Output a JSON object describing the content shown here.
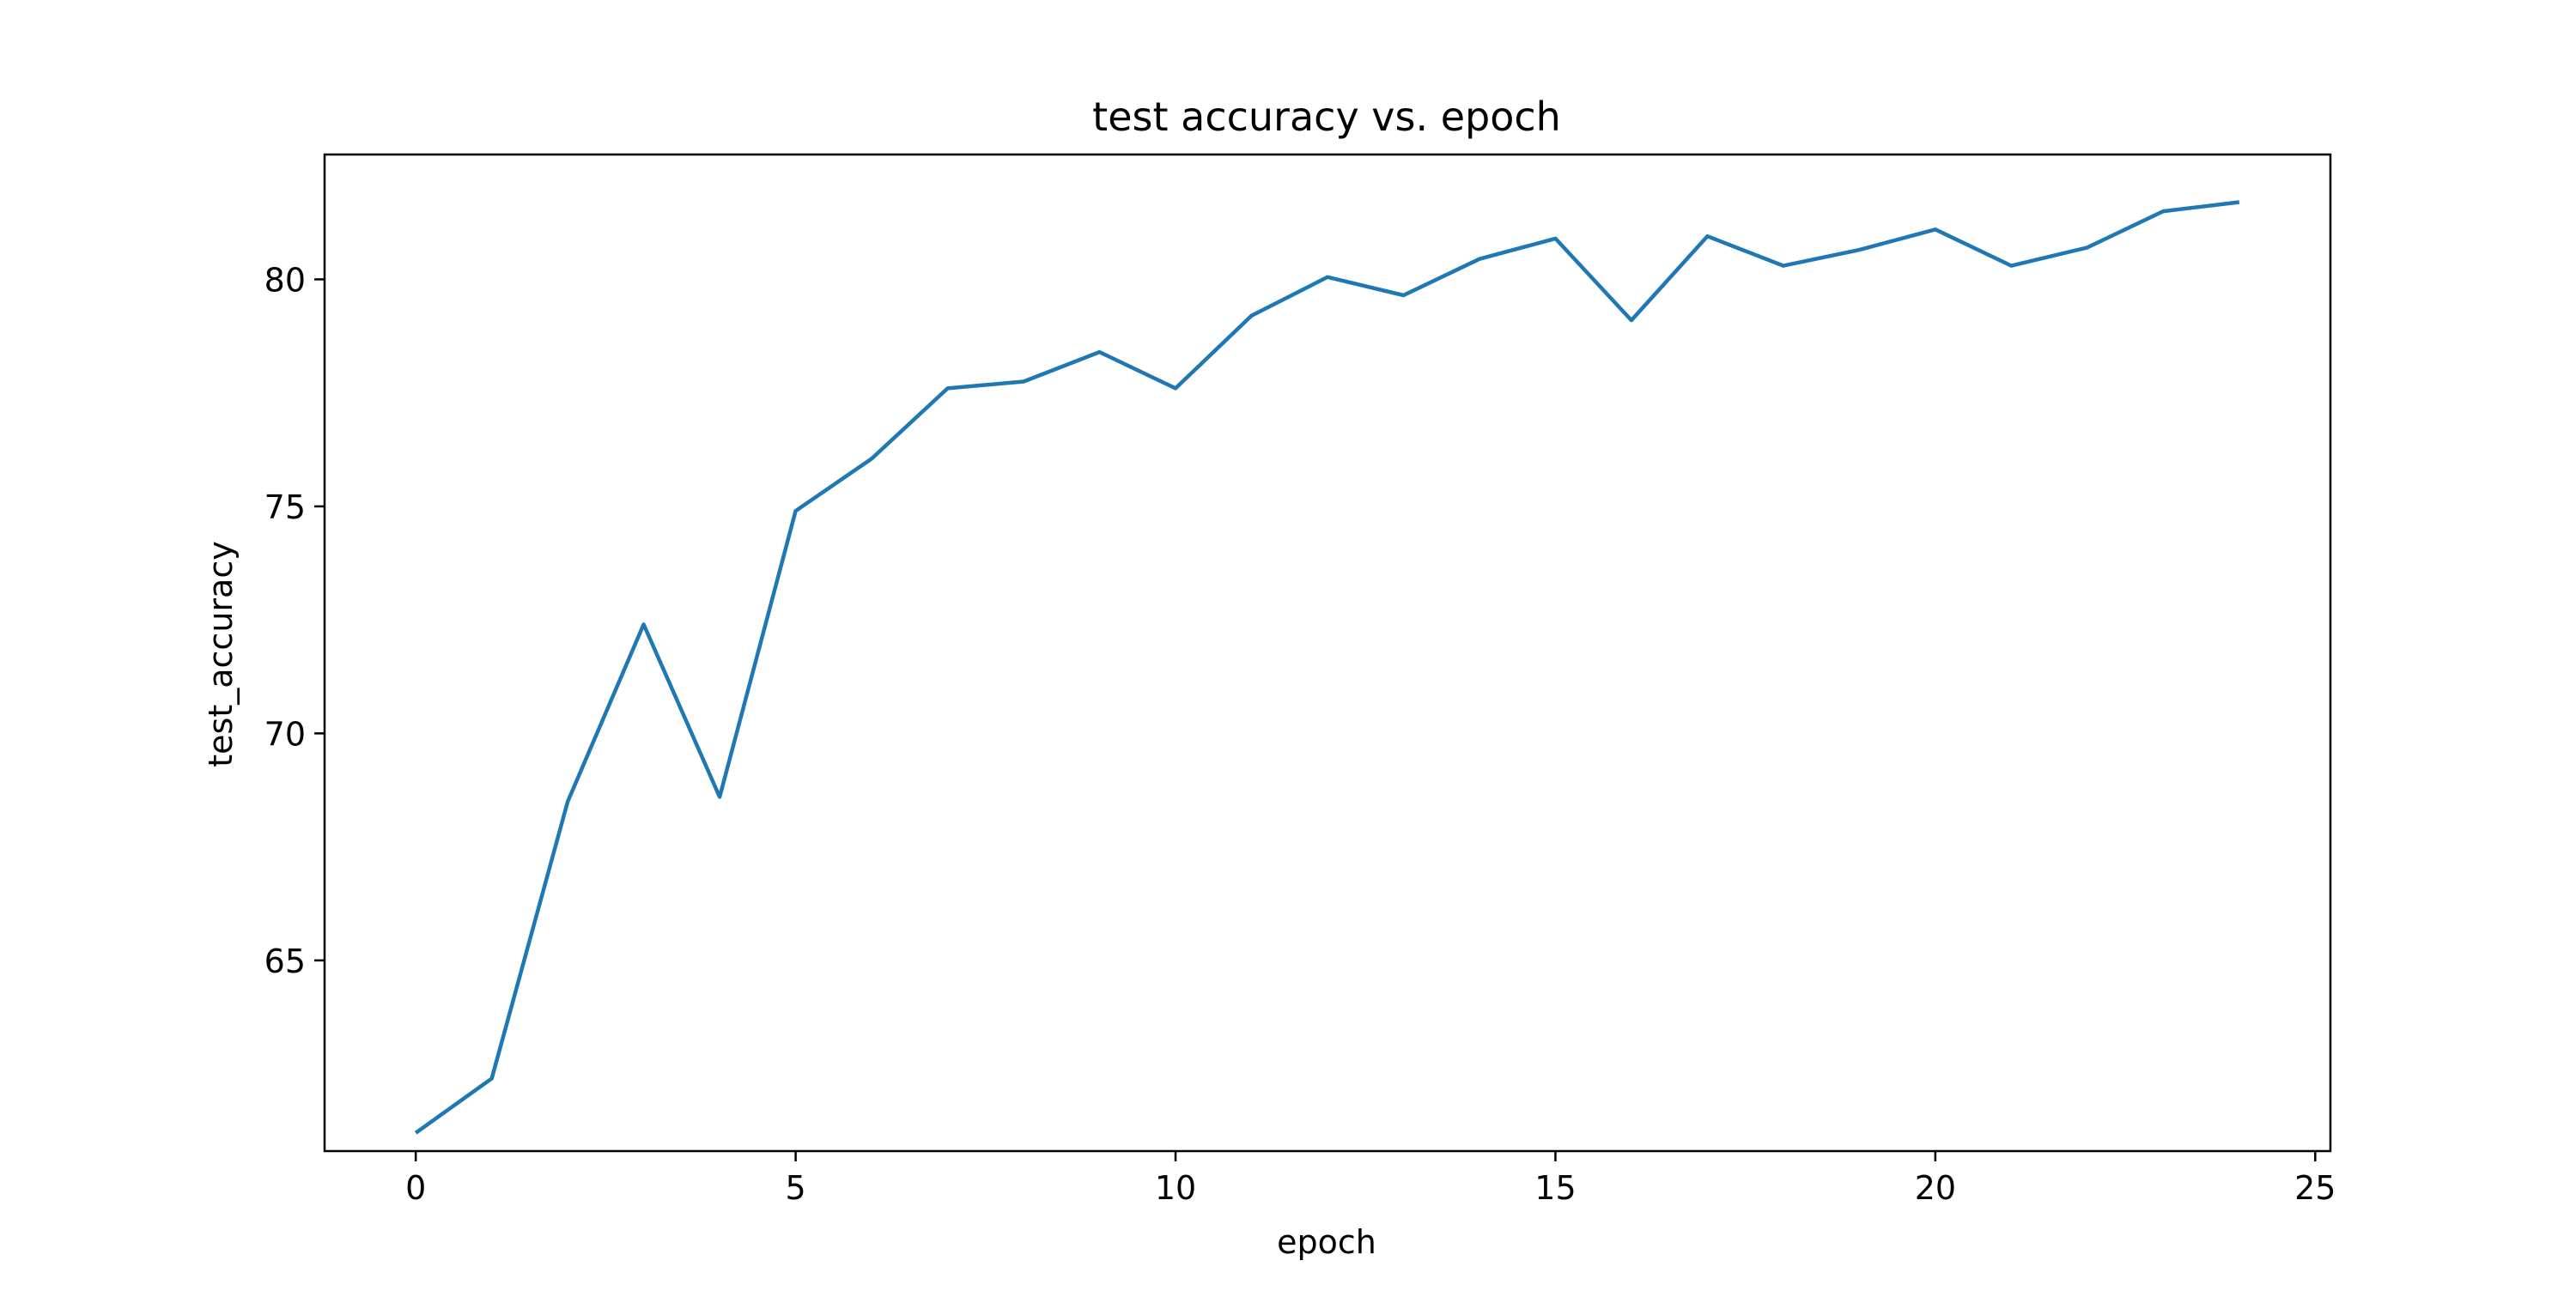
{
  "chart_data": {
    "type": "line",
    "title": "test accuracy vs. epoch",
    "xlabel": "epoch",
    "ylabel": "test_accuracy",
    "xlim": [
      -1.2,
      25.2
    ],
    "ylim": [
      60.8,
      82.75
    ],
    "xticks": [
      0,
      5,
      10,
      15,
      20,
      25
    ],
    "yticks": [
      65,
      70,
      75,
      80
    ],
    "xtick_labels": [
      "0",
      "5",
      "10",
      "15",
      "20",
      "25"
    ],
    "ytick_labels": [
      "65",
      "70",
      "75",
      "80"
    ],
    "grid": false,
    "legend": "none",
    "colors": {
      "line": "#1f77b4",
      "axes": "#000000",
      "background": "#ffffff"
    },
    "series": [
      {
        "x": [
          0,
          1,
          2,
          3,
          4,
          5,
          6,
          7,
          8,
          9,
          10,
          11,
          12,
          13,
          14,
          15,
          16,
          17,
          18,
          19,
          20,
          21,
          22,
          23,
          24
        ],
        "values": [
          61.2,
          62.4,
          68.5,
          72.4,
          68.6,
          74.9,
          76.05,
          77.6,
          77.75,
          78.4,
          77.6,
          79.2,
          80.05,
          79.65,
          80.45,
          80.9,
          79.1,
          80.95,
          80.3,
          80.65,
          81.1,
          80.3,
          80.7,
          81.5,
          81.7
        ]
      }
    ]
  }
}
